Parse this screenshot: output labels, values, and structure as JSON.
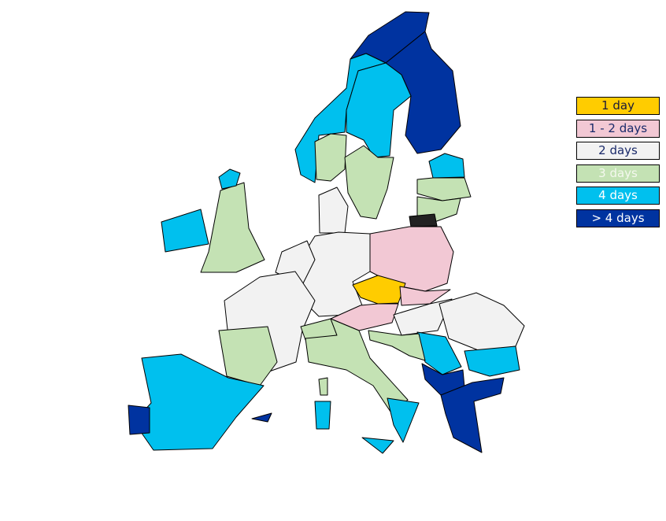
{
  "legend": [
    {
      "label": "1 day",
      "color": "#ffcc00",
      "text_color": "#1a1a3a"
    },
    {
      "label": "1 - 2 days",
      "color": "#f2c8d4",
      "text_color": "#1a2a6a"
    },
    {
      "label": "2 days",
      "color": "#f2f2f2",
      "text_color": "#1a2a6a"
    },
    {
      "label": "3 days",
      "color": "#c4e2b4",
      "text_color": "#f4f8ee"
    },
    {
      "label": "4 days",
      "color": "#00c0ee",
      "text_color": "#ffffff"
    },
    {
      "label": "> 4 days",
      "color": "#0033a0",
      "text_color": "#ffffff"
    }
  ],
  "no_data_color": "#222222"
}
